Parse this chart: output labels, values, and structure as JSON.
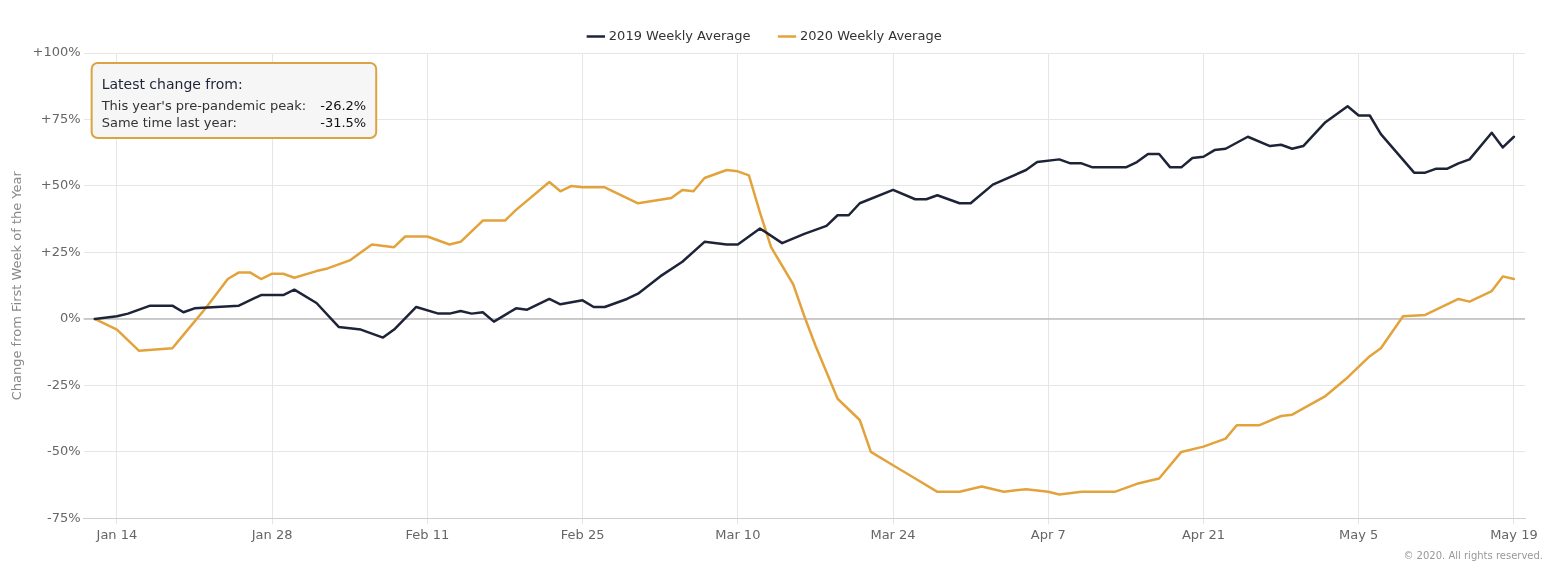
{
  "chart_data": {
    "type": "line",
    "ylabel": "Change from First Week of the Year",
    "legend": "top",
    "grid": true,
    "marker": "none",
    "line_style": "solid",
    "xlim": [
      "2020-01-11",
      "2020-05-20"
    ],
    "xticks": [
      {
        "value": "2020-01-14",
        "label": "Jan 14"
      },
      {
        "value": "2020-01-28",
        "label": "Jan 28"
      },
      {
        "value": "2020-02-11",
        "label": "Feb 11"
      },
      {
        "value": "2020-02-25",
        "label": "Feb 25"
      },
      {
        "value": "2020-03-10",
        "label": "Mar 10"
      },
      {
        "value": "2020-03-24",
        "label": "Mar 24"
      },
      {
        "value": "2020-04-07",
        "label": "Apr 7"
      },
      {
        "value": "2020-04-21",
        "label": "Apr 21"
      },
      {
        "value": "2020-05-05",
        "label": "May 5"
      },
      {
        "value": "2020-05-19",
        "label": "May 19"
      }
    ],
    "ylim": [
      -75,
      100
    ],
    "yticks": [
      {
        "value": -75,
        "label": "-75%"
      },
      {
        "value": -50,
        "label": "-50%"
      },
      {
        "value": -25,
        "label": "-25%"
      },
      {
        "value": 0,
        "label": "0%"
      },
      {
        "value": 25,
        "label": "+25%"
      },
      {
        "value": 50,
        "label": "+50%"
      },
      {
        "value": 75,
        "label": "+75%"
      },
      {
        "value": 100,
        "label": "+100%"
      }
    ],
    "ref_lines": [
      {
        "axis": "y",
        "value": 0,
        "color": "#bdbdbd"
      }
    ],
    "annotations": [
      "Latest change from:",
      "This year's pre-pandemic peak: -26.2%",
      "Same time last year: -31.5%",
      "© 2020. All rights reserved."
    ],
    "series": [
      {
        "name": "2019 Weekly Average",
        "color": "#1e2438",
        "x": [
          "2020-01-12",
          "2020-01-14",
          "2020-01-15",
          "2020-01-17",
          "2020-01-19",
          "2020-01-20",
          "2020-01-21",
          "2020-01-25",
          "2020-01-27",
          "2020-01-29",
          "2020-01-30",
          "2020-02-01",
          "2020-02-03",
          "2020-02-05",
          "2020-02-07",
          "2020-02-08",
          "2020-02-10",
          "2020-02-12",
          "2020-02-13",
          "2020-02-14",
          "2020-02-15",
          "2020-02-16",
          "2020-02-17",
          "2020-02-19",
          "2020-02-20",
          "2020-02-22",
          "2020-02-23",
          "2020-02-25",
          "2020-02-26",
          "2020-02-27",
          "2020-02-29",
          "2020-03-01",
          "2020-03-03",
          "2020-03-05",
          "2020-03-07",
          "2020-03-09",
          "2020-03-10",
          "2020-03-12",
          "2020-03-14",
          "2020-03-16",
          "2020-03-18",
          "2020-03-19",
          "2020-03-20",
          "2020-03-21",
          "2020-03-24",
          "2020-03-26",
          "2020-03-27",
          "2020-03-28",
          "2020-03-30",
          "2020-03-31",
          "2020-04-02",
          "2020-04-05",
          "2020-04-06",
          "2020-04-08",
          "2020-04-09",
          "2020-04-10",
          "2020-04-11",
          "2020-04-14",
          "2020-04-15",
          "2020-04-16",
          "2020-04-17",
          "2020-04-18",
          "2020-04-19",
          "2020-04-20",
          "2020-04-21",
          "2020-04-22",
          "2020-04-23",
          "2020-04-25",
          "2020-04-27",
          "2020-04-28",
          "2020-04-29",
          "2020-04-30",
          "2020-05-01",
          "2020-05-02",
          "2020-05-04",
          "2020-05-05",
          "2020-05-06",
          "2020-05-07",
          "2020-05-10",
          "2020-05-11",
          "2020-05-12",
          "2020-05-13",
          "2020-05-14",
          "2020-05-15",
          "2020-05-17",
          "2020-05-18",
          "2020-05-19"
        ],
        "values": [
          0,
          1,
          2,
          5,
          5,
          2.5,
          4,
          5,
          9,
          9,
          11,
          6,
          -3,
          -4,
          -7,
          -4,
          4.5,
          2,
          2,
          3,
          2,
          2.5,
          -1,
          4,
          3.5,
          7.5,
          5.5,
          7,
          4.5,
          4.5,
          7.5,
          9.5,
          16,
          21.5,
          29,
          28,
          28,
          34,
          28.5,
          32,
          35,
          39,
          39,
          43.5,
          48.5,
          45,
          45,
          46.5,
          43.5,
          43.5,
          50.5,
          56,
          59,
          60,
          58.5,
          58.5,
          57,
          57,
          59,
          62,
          62,
          57,
          57,
          60.5,
          61,
          63.5,
          64,
          68.5,
          65,
          65.5,
          64,
          65,
          69.5,
          74,
          80,
          76.5,
          76.5,
          69.5,
          55,
          55,
          56.5,
          56.5,
          58.5,
          60,
          70,
          64.5,
          68.5
        ]
      },
      {
        "name": "2020 Weekly Average",
        "color": "#e3a33c",
        "x": [
          "2020-01-12",
          "2020-01-14",
          "2020-01-16",
          "2020-01-19",
          "2020-01-20",
          "2020-01-22",
          "2020-01-24",
          "2020-01-25",
          "2020-01-26",
          "2020-01-27",
          "2020-01-28",
          "2020-01-29",
          "2020-01-30",
          "2020-02-01",
          "2020-02-02",
          "2020-02-04",
          "2020-02-06",
          "2020-02-08",
          "2020-02-09",
          "2020-02-11",
          "2020-02-13",
          "2020-02-14",
          "2020-02-16",
          "2020-02-18",
          "2020-02-19",
          "2020-02-20",
          "2020-02-22",
          "2020-02-23",
          "2020-02-24",
          "2020-02-25",
          "2020-02-27",
          "2020-03-01",
          "2020-03-04",
          "2020-03-05",
          "2020-03-06",
          "2020-03-07",
          "2020-03-09",
          "2020-03-10",
          "2020-03-11",
          "2020-03-12",
          "2020-03-13",
          "2020-03-14",
          "2020-03-15",
          "2020-03-16",
          "2020-03-17",
          "2020-03-19",
          "2020-03-21",
          "2020-03-22",
          "2020-03-24",
          "2020-03-26",
          "2020-03-28",
          "2020-03-30",
          "2020-04-01",
          "2020-04-03",
          "2020-04-05",
          "2020-04-07",
          "2020-04-08",
          "2020-04-10",
          "2020-04-13",
          "2020-04-15",
          "2020-04-17",
          "2020-04-19",
          "2020-04-21",
          "2020-04-23",
          "2020-04-24",
          "2020-04-26",
          "2020-04-28",
          "2020-04-29",
          "2020-05-02",
          "2020-05-04",
          "2020-05-06",
          "2020-05-07",
          "2020-05-09",
          "2020-05-11",
          "2020-05-14",
          "2020-05-15",
          "2020-05-17",
          "2020-05-18",
          "2020-05-19"
        ],
        "values": [
          0,
          -4,
          -12,
          -11,
          -6,
          4,
          15,
          17.5,
          17.5,
          15,
          17,
          17,
          15.5,
          18,
          19,
          22,
          28,
          27,
          31,
          31,
          28,
          29,
          37,
          37,
          41,
          44.5,
          51.5,
          48,
          50,
          49.5,
          49.5,
          43.5,
          45.5,
          48.5,
          48,
          53,
          56,
          55.5,
          54,
          40,
          27,
          20,
          13,
          1,
          -10,
          -30,
          -38,
          -50,
          -55,
          -60,
          -65,
          -65,
          -63,
          -65,
          -64,
          -65,
          -66,
          -65,
          -65,
          -62,
          -60,
          -50,
          -48,
          -45,
          -40,
          -40,
          -36.5,
          -36,
          -29,
          -22,
          -14,
          -11,
          1,
          1.5,
          7.5,
          6.5,
          10.5,
          16,
          15
        ]
      }
    ]
  }
}
